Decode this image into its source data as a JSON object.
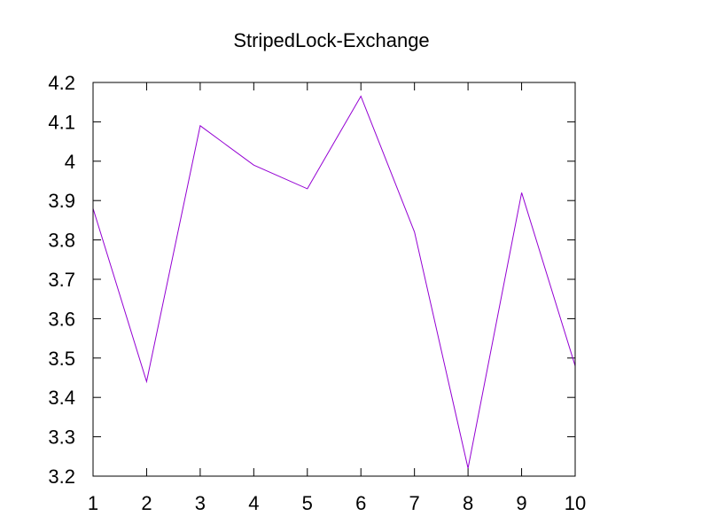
{
  "chart_data": {
    "type": "line",
    "title": "StripedLock-Exchange",
    "xlabel": "",
    "ylabel": "",
    "x": [
      1,
      2,
      3,
      4,
      5,
      6,
      7,
      8,
      9,
      10
    ],
    "xlim": [
      1,
      10
    ],
    "ylim": [
      3.2,
      4.2
    ],
    "xticks": [
      "1",
      "2",
      "3",
      "4",
      "5",
      "6",
      "7",
      "8",
      "9",
      "10"
    ],
    "yticks": [
      "3.2",
      "3.3",
      "3.4",
      "3.5",
      "3.6",
      "3.7",
      "3.8",
      "3.9",
      "4",
      "4.1",
      "4.2"
    ],
    "grid": false,
    "legend": false,
    "series": [
      {
        "color": "#9400d3",
        "values": [
          3.88,
          3.44,
          4.09,
          3.99,
          3.93,
          4.165,
          3.82,
          3.22,
          3.92,
          3.48
        ]
      }
    ]
  }
}
